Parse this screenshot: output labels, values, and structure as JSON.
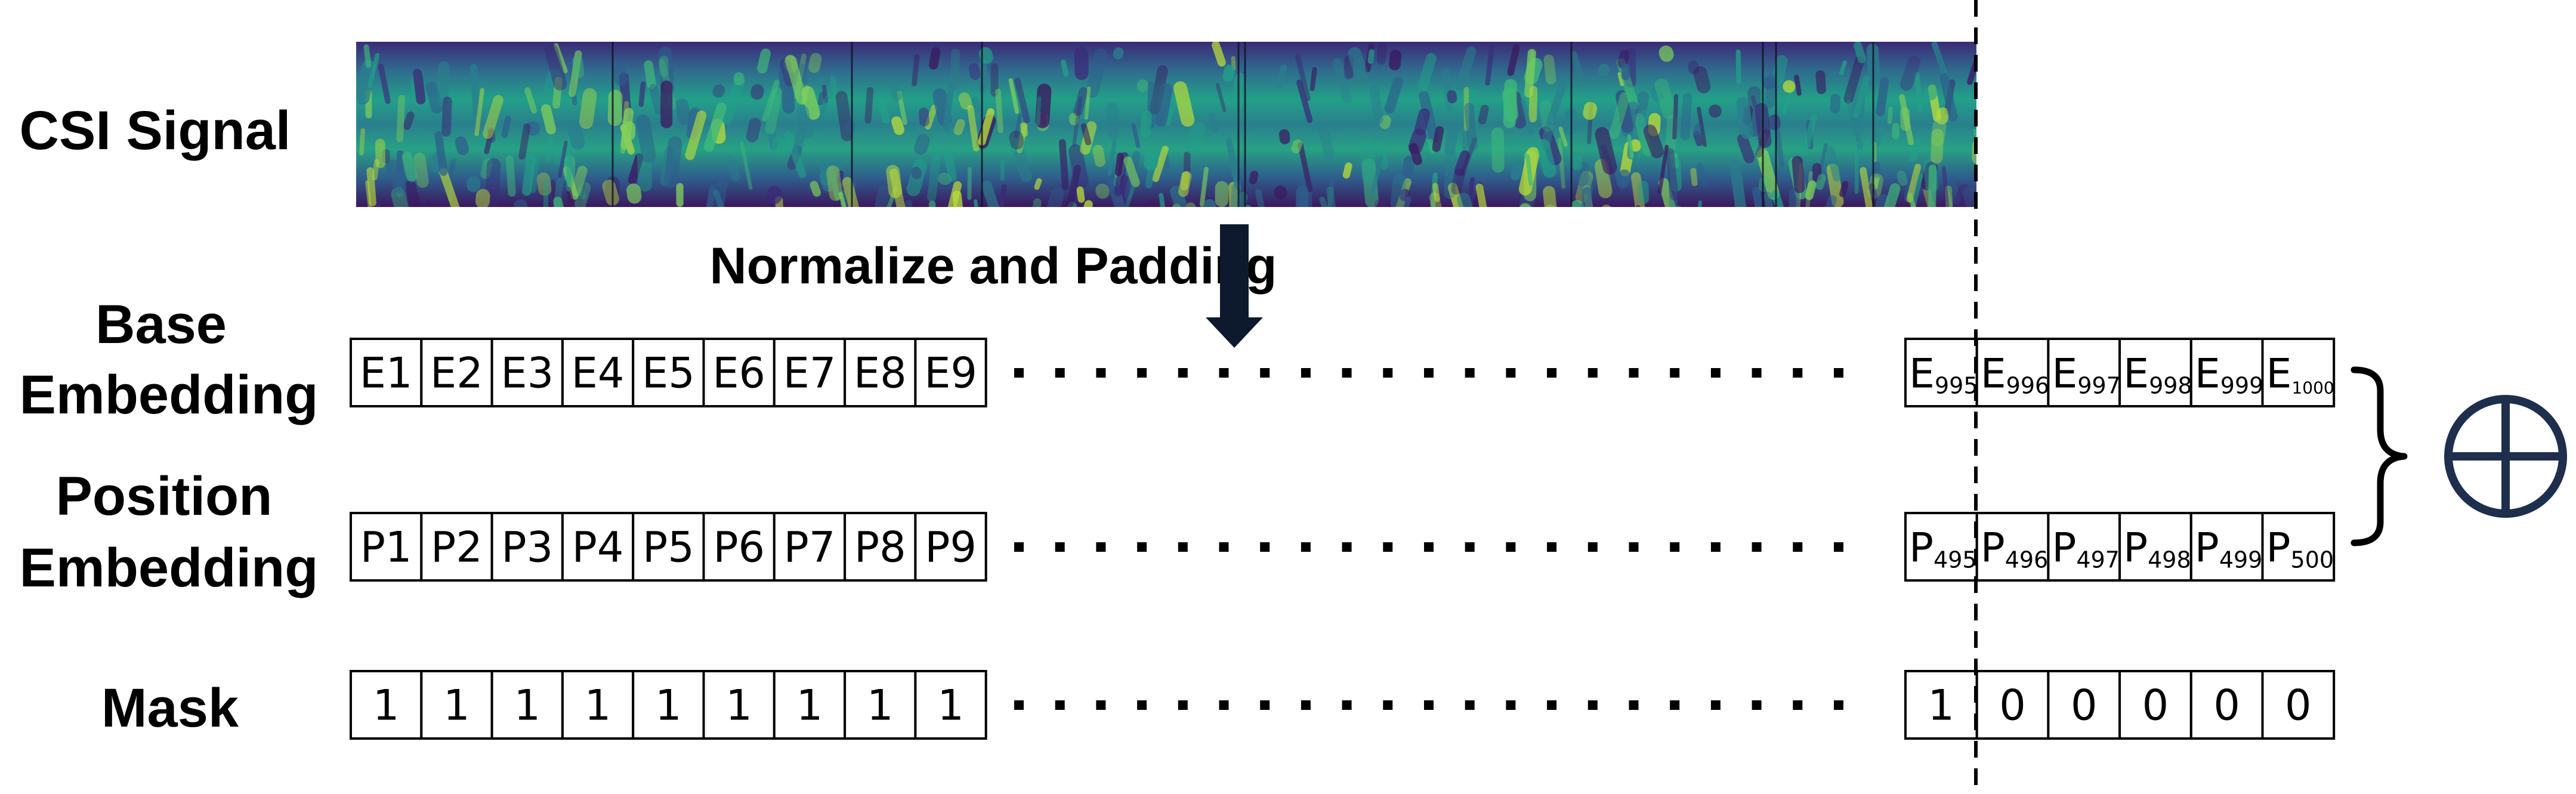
{
  "labels": {
    "csi_signal": "CSI Signal",
    "normalize": "Normalize and Padding",
    "base_line1": "Base",
    "base_line2": "Embedding",
    "position_line1": "Position",
    "position_line2": "Embedding",
    "mask": "Mask"
  },
  "rows": {
    "base": {
      "left_cells": [
        "E1",
        "E2",
        "E3",
        "E4",
        "E5",
        "E6",
        "E7",
        "E8",
        "E9"
      ],
      "right_cells": [
        {
          "base": "E",
          "sub": "995"
        },
        {
          "base": "E",
          "sub": "996"
        },
        {
          "base": "E",
          "sub": "997"
        },
        {
          "base": "E",
          "sub": "998"
        },
        {
          "base": "E",
          "sub": "999"
        },
        {
          "base": "E",
          "sub": "1000"
        }
      ]
    },
    "position": {
      "left_cells": [
        "P1",
        "P2",
        "P3",
        "P4",
        "P5",
        "P6",
        "P7",
        "P8",
        "P9"
      ],
      "right_cells": [
        {
          "base": "P",
          "sub": "495"
        },
        {
          "base": "P",
          "sub": "496"
        },
        {
          "base": "P",
          "sub": "497"
        },
        {
          "base": "P",
          "sub": "498"
        },
        {
          "base": "P",
          "sub": "499"
        },
        {
          "base": "P",
          "sub": "500"
        }
      ]
    },
    "mask": {
      "left_cells": [
        "1",
        "1",
        "1",
        "1",
        "1",
        "1",
        "1",
        "1",
        "1"
      ],
      "right_cells": [
        "1",
        "0",
        "0",
        "0",
        "0",
        "0"
      ]
    }
  },
  "icons": {
    "arrow": "down-arrow-icon",
    "brace": "right-brace-icon",
    "add": "circled-plus-icon"
  },
  "colors": {
    "mask_one": "#1aa34a",
    "mask_zero": "#e0191c",
    "plus_circle": "#1d2f4d",
    "arrow_fill": "#0d1a2e",
    "heatmap_dark": "#3b0f55",
    "heatmap_mid": "#2a8b8a",
    "heatmap_light": "#b9dd3a"
  }
}
